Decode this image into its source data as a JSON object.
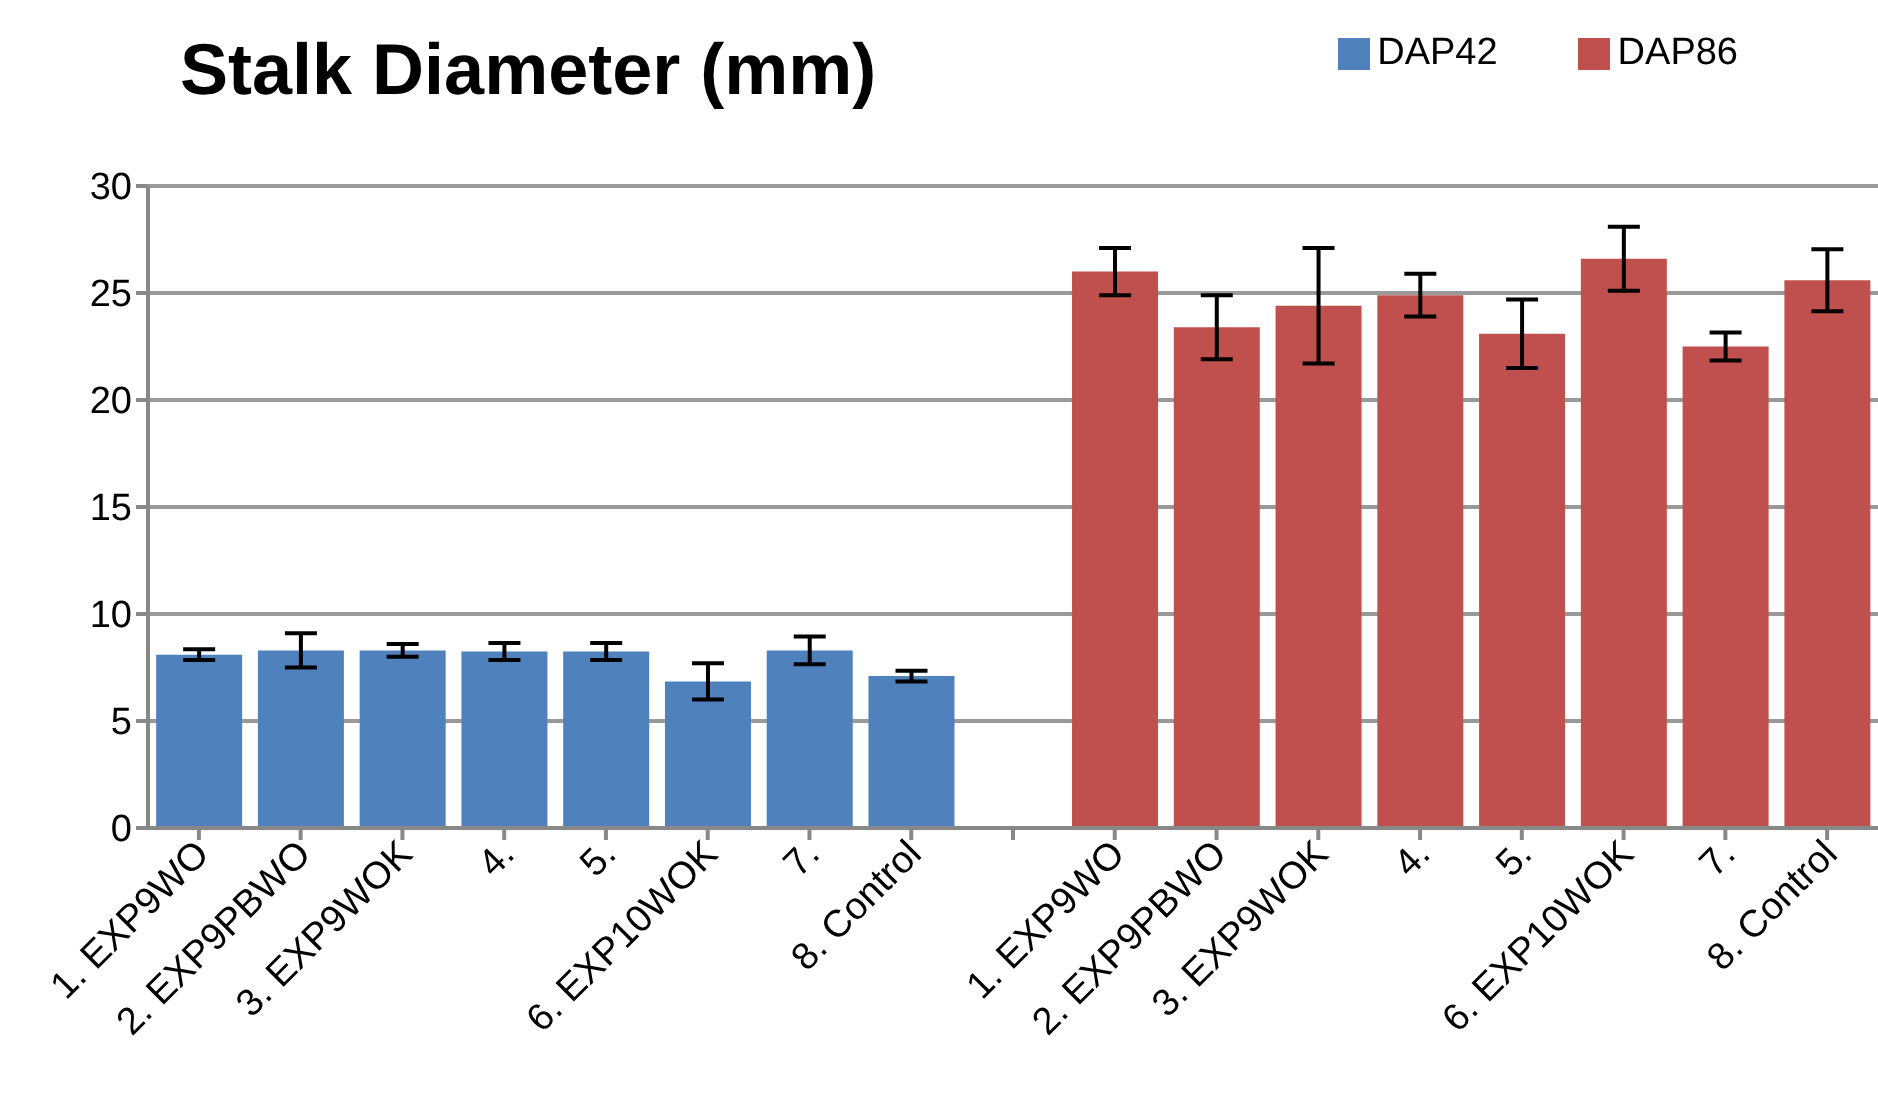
{
  "chart_data": {
    "type": "bar",
    "title": "Stalk Diameter (mm)",
    "categories": [
      "1. EXP9WO",
      "2. EXP9PBWO",
      "3. EXP9WOK",
      "4.",
      "5.",
      "6. EXP10WOK",
      "7.",
      "8. Control",
      null,
      "1. EXP9WO",
      "2. EXP9PBWO",
      "3. EXP9WOK",
      "4.",
      "5.",
      "6. EXP10WOK",
      "7.",
      "8. Control"
    ],
    "series": [
      {
        "name": "DAP42",
        "color": "#4f81bd",
        "values": [
          8.1,
          8.3,
          8.3,
          8.25,
          8.25,
          6.85,
          8.3,
          7.1,
          null,
          null,
          null,
          null,
          null,
          null,
          null,
          null,
          null
        ],
        "errors": [
          0.25,
          0.8,
          0.3,
          0.4,
          0.4,
          0.85,
          0.65,
          0.25,
          null,
          null,
          null,
          null,
          null,
          null,
          null,
          null,
          null
        ]
      },
      {
        "name": "DAP86",
        "color": "#c0504d",
        "values": [
          null,
          null,
          null,
          null,
          null,
          null,
          null,
          null,
          null,
          26.0,
          23.4,
          24.4,
          24.9,
          23.1,
          26.6,
          22.5,
          25.6
        ],
        "errors": [
          null,
          null,
          null,
          null,
          null,
          null,
          null,
          null,
          null,
          1.1,
          1.5,
          2.7,
          1.0,
          1.6,
          1.5,
          0.65,
          1.45
        ]
      }
    ],
    "ylim": [
      0,
      30
    ],
    "yticks": [
      0,
      5,
      10,
      15,
      20,
      25,
      30
    ],
    "grid": "y",
    "legend": "top right"
  }
}
